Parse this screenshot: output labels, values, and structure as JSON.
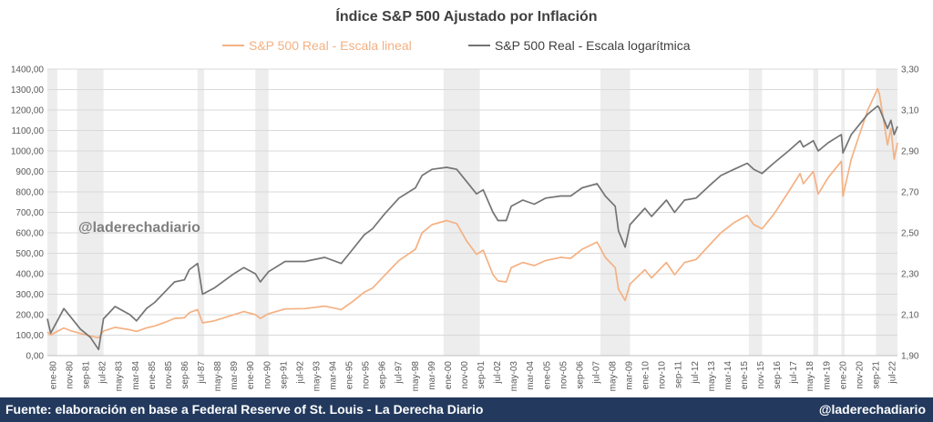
{
  "footer": {
    "source": "Fuente: elaboración en base a Federal Reserve of St. Louis - La Derecha Diario",
    "brand": "@laderechadiario"
  },
  "watermark": "@laderechadiario",
  "chart_data": {
    "type": "line",
    "title": "Índice S&P 500 Ajustado por Inflación",
    "legend_position": "top",
    "grid": true,
    "x_range": [
      "1980-01",
      "2022-12"
    ],
    "x_tick_labels": [
      "ene-80",
      "nov-80",
      "sep-81",
      "jul-82",
      "may-83",
      "mar-84",
      "ene-85",
      "nov-85",
      "sep-86",
      "jul-87",
      "may-88",
      "mar-89",
      "ene-90",
      "nov-90",
      "sep-91",
      "jul-92",
      "may-93",
      "mar-94",
      "ene-95",
      "nov-95",
      "sep-96",
      "jul-97",
      "may-98",
      "mar-99",
      "ene-00",
      "nov-00",
      "sep-01",
      "jul-02",
      "may-03",
      "mar-04",
      "ene-05",
      "nov-05",
      "sep-06",
      "jul-07",
      "may-08",
      "mar-09",
      "ene-10",
      "nov-10",
      "sep-11",
      "jul-12",
      "may-13",
      "mar-14",
      "ene-15",
      "nov-15",
      "sep-16",
      "jul-17",
      "may-18",
      "mar-19",
      "ene-20",
      "nov-20",
      "sep-21",
      "jul-22"
    ],
    "y_left": {
      "min": 0,
      "max": 1400,
      "ticks": [
        "0,00",
        "100,00",
        "200,00",
        "300,00",
        "400,00",
        "500,00",
        "600,00",
        "700,00",
        "800,00",
        "900,00",
        "1000,00",
        "1100,00",
        "1200,00",
        "1300,00",
        "1400,00"
      ]
    },
    "y_right": {
      "min": 1.9,
      "max": 3.3,
      "ticks": [
        "1,90",
        "2,10",
        "2,30",
        "2,50",
        "2,70",
        "2,90",
        "3,10",
        "3,30"
      ]
    },
    "recessions": [
      [
        "1980-01",
        "1980-07"
      ],
      [
        "1981-07",
        "1982-11"
      ],
      [
        "1987-08",
        "1987-12"
      ],
      [
        "1990-07",
        "1991-03"
      ],
      [
        "2000-01",
        "2001-11"
      ],
      [
        "2007-12",
        "2009-06"
      ],
      [
        "2015-06",
        "2016-02"
      ],
      [
        "2018-09",
        "2018-12"
      ],
      [
        "2020-02",
        "2020-04"
      ],
      [
        "2021-11",
        "2022-12"
      ]
    ],
    "series": [
      {
        "name": "S&P 500 Real - Escala lineal",
        "axis": "left",
        "color": "#f4b183",
        "points": [
          [
            "1980-01",
            115
          ],
          [
            "1980-03",
            100
          ],
          [
            "1980-07",
            118
          ],
          [
            "1980-11",
            135
          ],
          [
            "1981-03",
            122
          ],
          [
            "1981-09",
            108
          ],
          [
            "1982-03",
            96
          ],
          [
            "1982-08",
            87
          ],
          [
            "1982-11",
            120
          ],
          [
            "1983-06",
            138
          ],
          [
            "1984-03",
            126
          ],
          [
            "1984-07",
            118
          ],
          [
            "1985-01",
            135
          ],
          [
            "1985-06",
            145
          ],
          [
            "1985-12",
            162
          ],
          [
            "1986-06",
            182
          ],
          [
            "1986-12",
            185
          ],
          [
            "1987-03",
            210
          ],
          [
            "1987-08",
            225
          ],
          [
            "1987-11",
            160
          ],
          [
            "1988-06",
            170
          ],
          [
            "1989-06",
            200
          ],
          [
            "1989-12",
            215
          ],
          [
            "1990-07",
            200
          ],
          [
            "1990-10",
            182
          ],
          [
            "1991-03",
            205
          ],
          [
            "1992-01",
            228
          ],
          [
            "1993-01",
            230
          ],
          [
            "1994-01",
            242
          ],
          [
            "1994-11",
            225
          ],
          [
            "1995-06",
            265
          ],
          [
            "1996-01",
            310
          ],
          [
            "1996-06",
            330
          ],
          [
            "1997-01",
            390
          ],
          [
            "1997-10",
            465
          ],
          [
            "1998-08",
            520
          ],
          [
            "1998-12",
            600
          ],
          [
            "1999-06",
            640
          ],
          [
            "2000-03",
            660
          ],
          [
            "2000-09",
            645
          ],
          [
            "2001-03",
            560
          ],
          [
            "2001-09",
            495
          ],
          [
            "2002-01",
            515
          ],
          [
            "2002-07",
            395
          ],
          [
            "2002-10",
            365
          ],
          [
            "2003-03",
            360
          ],
          [
            "2003-06",
            430
          ],
          [
            "2004-01",
            455
          ],
          [
            "2004-08",
            440
          ],
          [
            "2005-03",
            465
          ],
          [
            "2005-12",
            480
          ],
          [
            "2006-06",
            475
          ],
          [
            "2007-01",
            520
          ],
          [
            "2007-10",
            555
          ],
          [
            "2008-03",
            480
          ],
          [
            "2008-09",
            430
          ],
          [
            "2008-11",
            325
          ],
          [
            "2009-03",
            270
          ],
          [
            "2009-06",
            350
          ],
          [
            "2010-03",
            420
          ],
          [
            "2010-07",
            380
          ],
          [
            "2011-04",
            455
          ],
          [
            "2011-09",
            395
          ],
          [
            "2012-03",
            455
          ],
          [
            "2012-10",
            470
          ],
          [
            "2013-06",
            540
          ],
          [
            "2014-01",
            600
          ],
          [
            "2014-09",
            650
          ],
          [
            "2015-05",
            685
          ],
          [
            "2015-09",
            640
          ],
          [
            "2016-02",
            620
          ],
          [
            "2016-09",
            690
          ],
          [
            "2017-06",
            800
          ],
          [
            "2018-01",
            890
          ],
          [
            "2018-03",
            840
          ],
          [
            "2018-09",
            900
          ],
          [
            "2018-12",
            790
          ],
          [
            "2019-06",
            870
          ],
          [
            "2019-12",
            930
          ],
          [
            "2020-02",
            950
          ],
          [
            "2020-03",
            780
          ],
          [
            "2020-08",
            960
          ],
          [
            "2021-01",
            1080
          ],
          [
            "2021-06",
            1200
          ],
          [
            "2021-12",
            1305
          ],
          [
            "2022-01",
            1280
          ],
          [
            "2022-06",
            1030
          ],
          [
            "2022-08",
            1110
          ],
          [
            "2022-10",
            960
          ],
          [
            "2022-12",
            1040
          ]
        ]
      },
      {
        "name": "S&P 500 Real - Escala logarítmica",
        "axis": "right",
        "color": "#747474",
        "points": [
          [
            "1980-01",
            2.08
          ],
          [
            "1980-03",
            2.01
          ],
          [
            "1980-07",
            2.07
          ],
          [
            "1980-11",
            2.13
          ],
          [
            "1981-03",
            2.09
          ],
          [
            "1981-09",
            2.03
          ],
          [
            "1982-03",
            1.99
          ],
          [
            "1982-08",
            1.93
          ],
          [
            "1982-11",
            2.08
          ],
          [
            "1983-06",
            2.14
          ],
          [
            "1984-03",
            2.1
          ],
          [
            "1984-07",
            2.07
          ],
          [
            "1985-01",
            2.13
          ],
          [
            "1985-06",
            2.16
          ],
          [
            "1985-12",
            2.21
          ],
          [
            "1986-06",
            2.26
          ],
          [
            "1986-12",
            2.27
          ],
          [
            "1987-03",
            2.32
          ],
          [
            "1987-08",
            2.35
          ],
          [
            "1987-11",
            2.2
          ],
          [
            "1988-06",
            2.23
          ],
          [
            "1989-06",
            2.3
          ],
          [
            "1989-12",
            2.33
          ],
          [
            "1990-07",
            2.3
          ],
          [
            "1990-10",
            2.26
          ],
          [
            "1991-03",
            2.31
          ],
          [
            "1992-01",
            2.36
          ],
          [
            "1993-01",
            2.36
          ],
          [
            "1994-01",
            2.38
          ],
          [
            "1994-11",
            2.35
          ],
          [
            "1995-06",
            2.42
          ],
          [
            "1996-01",
            2.49
          ],
          [
            "1996-06",
            2.52
          ],
          [
            "1997-01",
            2.59
          ],
          [
            "1997-10",
            2.67
          ],
          [
            "1998-08",
            2.72
          ],
          [
            "1998-12",
            2.78
          ],
          [
            "1999-06",
            2.81
          ],
          [
            "2000-03",
            2.82
          ],
          [
            "2000-09",
            2.81
          ],
          [
            "2001-03",
            2.75
          ],
          [
            "2001-09",
            2.69
          ],
          [
            "2002-01",
            2.71
          ],
          [
            "2002-07",
            2.6
          ],
          [
            "2002-10",
            2.56
          ],
          [
            "2003-03",
            2.56
          ],
          [
            "2003-06",
            2.63
          ],
          [
            "2004-01",
            2.66
          ],
          [
            "2004-08",
            2.64
          ],
          [
            "2005-03",
            2.67
          ],
          [
            "2005-12",
            2.68
          ],
          [
            "2006-06",
            2.68
          ],
          [
            "2007-01",
            2.72
          ],
          [
            "2007-10",
            2.74
          ],
          [
            "2008-03",
            2.68
          ],
          [
            "2008-09",
            2.63
          ],
          [
            "2008-11",
            2.51
          ],
          [
            "2009-03",
            2.43
          ],
          [
            "2009-06",
            2.54
          ],
          [
            "2010-03",
            2.62
          ],
          [
            "2010-07",
            2.58
          ],
          [
            "2011-04",
            2.66
          ],
          [
            "2011-09",
            2.6
          ],
          [
            "2012-03",
            2.66
          ],
          [
            "2012-10",
            2.67
          ],
          [
            "2013-06",
            2.73
          ],
          [
            "2014-01",
            2.78
          ],
          [
            "2014-09",
            2.81
          ],
          [
            "2015-05",
            2.84
          ],
          [
            "2015-09",
            2.81
          ],
          [
            "2016-02",
            2.79
          ],
          [
            "2016-09",
            2.84
          ],
          [
            "2017-06",
            2.9
          ],
          [
            "2018-01",
            2.95
          ],
          [
            "2018-03",
            2.92
          ],
          [
            "2018-09",
            2.95
          ],
          [
            "2018-12",
            2.9
          ],
          [
            "2019-06",
            2.94
          ],
          [
            "2019-12",
            2.97
          ],
          [
            "2020-02",
            2.98
          ],
          [
            "2020-03",
            2.89
          ],
          [
            "2020-08",
            2.98
          ],
          [
            "2021-01",
            3.03
          ],
          [
            "2021-06",
            3.08
          ],
          [
            "2021-12",
            3.12
          ],
          [
            "2022-01",
            3.11
          ],
          [
            "2022-06",
            3.01
          ],
          [
            "2022-08",
            3.05
          ],
          [
            "2022-10",
            2.98
          ],
          [
            "2022-12",
            3.02
          ]
        ]
      }
    ]
  }
}
